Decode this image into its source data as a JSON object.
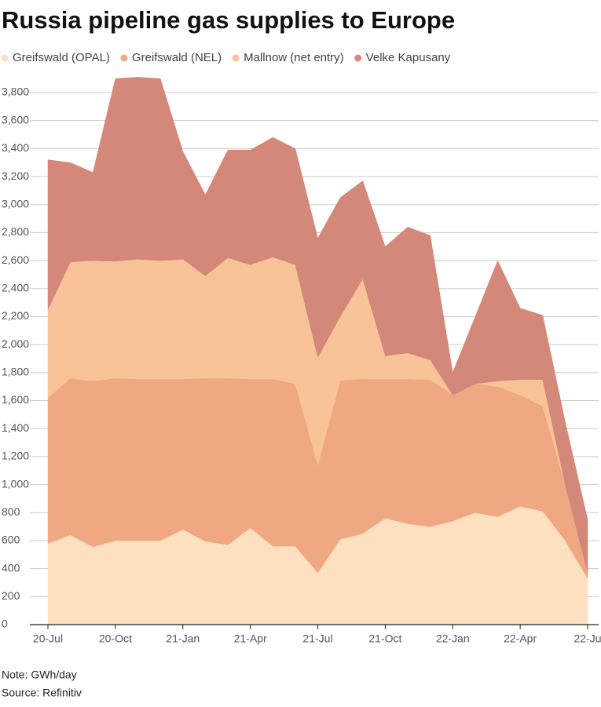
{
  "chart_data": {
    "type": "stacked_area",
    "title": "Russia pipeline gas supplies to Europe",
    "categories": [
      "20-Jul",
      null,
      null,
      "20-Oct",
      null,
      null,
      "21-Jan",
      null,
      null,
      "21-Apr",
      null,
      null,
      "21-Jul",
      null,
      null,
      "21-Oct",
      null,
      null,
      "22-Jan",
      null,
      null,
      "22-Apr",
      null,
      null,
      "22-Ju"
    ],
    "series": [
      {
        "name": "Greifswald (OPAL)",
        "color": "#fde0c0",
        "values": [
          580,
          640,
          555,
          600,
          600,
          600,
          680,
          595,
          570,
          690,
          560,
          560,
          370,
          610,
          650,
          760,
          720,
          700,
          740,
          800,
          770,
          845,
          810,
          600,
          330
        ]
      },
      {
        "name": "Greifswald (NEL)",
        "color": "#f0a882",
        "values": [
          1040,
          1120,
          1185,
          1160,
          1155,
          1155,
          1075,
          1165,
          1190,
          1065,
          1195,
          1160,
          770,
          1135,
          1105,
          995,
          1035,
          1050,
          900,
          920,
          930,
          795,
          750,
          400,
          40
        ]
      },
      {
        "name": "Mallnow (net entry)",
        "color": "#f9c39a",
        "values": [
          630,
          830,
          860,
          835,
          855,
          845,
          855,
          730,
          860,
          815,
          870,
          850,
          770,
          455,
          715,
          165,
          185,
          140,
          0,
          0,
          40,
          110,
          190,
          0,
          0
        ]
      },
      {
        "name": "Velke Kapusany",
        "color": "#d4887a",
        "values": [
          1070,
          710,
          630,
          1305,
          1300,
          1300,
          770,
          580,
          770,
          820,
          855,
          830,
          850,
          850,
          700,
          780,
          900,
          890,
          160,
          480,
          860,
          510,
          460,
          450,
          380
        ]
      }
    ],
    "ylim": [
      0,
      3800
    ],
    "yticks": [
      0,
      200,
      400,
      600,
      800,
      {
        "value": 1000,
        "label": "1,000"
      },
      {
        "value": 1200,
        "label": "1,200"
      },
      {
        "value": 1400,
        "label": "1,400"
      },
      {
        "value": 1600,
        "label": "1,600"
      },
      {
        "value": 1800,
        "label": "1,800"
      },
      {
        "value": 2000,
        "label": "2,000"
      },
      {
        "value": 2200,
        "label": "2,200"
      },
      {
        "value": 2400,
        "label": "2,400"
      },
      {
        "value": 2600,
        "label": "2,600"
      },
      {
        "value": 2800,
        "label": "2,800"
      },
      {
        "value": 3000,
        "label": "3,000"
      },
      {
        "value": 3200,
        "label": "3,200"
      },
      {
        "value": 3400,
        "label": "3,400"
      },
      {
        "value": 3600,
        "label": "3,600"
      },
      {
        "value": 3800,
        "label": "3,800"
      }
    ],
    "grid": true,
    "note": "Note: GWh/day",
    "source": "Source: Refinitiv"
  }
}
